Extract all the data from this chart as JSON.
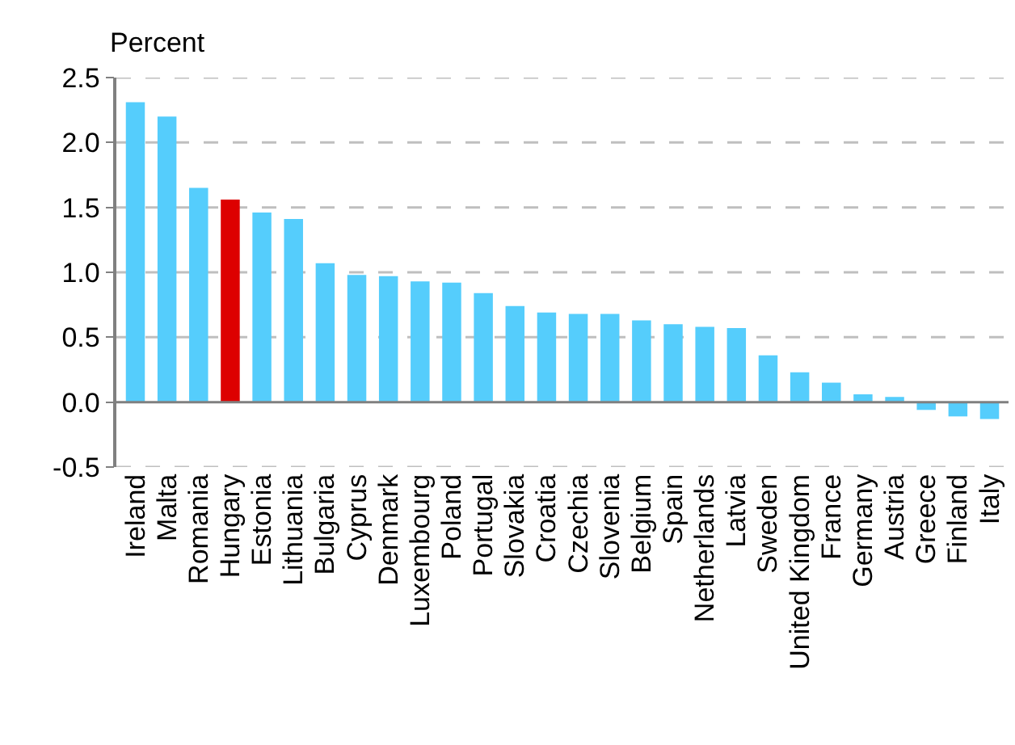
{
  "chart_data": {
    "type": "bar",
    "ylabel": "Percent",
    "categories": [
      "Ireland",
      "Malta",
      "Romania",
      "Hungary",
      "Estonia",
      "Lithuania",
      "Bulgaria",
      "Cyprus",
      "Denmark",
      "Luxembourg",
      "Poland",
      "Portugal",
      "Slovakia",
      "Croatia",
      "Czechia",
      "Slovenia",
      "Belgium",
      "Spain",
      "Netherlands",
      "Latvia",
      "Sweden",
      "United Kingdom",
      "France",
      "Germany",
      "Austria",
      "Greece",
      "Finland",
      "Italy"
    ],
    "values": [
      2.31,
      2.2,
      1.65,
      1.56,
      1.46,
      1.41,
      1.07,
      0.98,
      0.97,
      0.93,
      0.92,
      0.84,
      0.74,
      0.69,
      0.68,
      0.68,
      0.63,
      0.6,
      0.58,
      0.57,
      0.36,
      0.23,
      0.15,
      0.06,
      0.04,
      -0.06,
      -0.11,
      -0.13
    ],
    "colors": [
      "#55cdfc",
      "#55cdfc",
      "#55cdfc",
      "#dd0000",
      "#55cdfc",
      "#55cdfc",
      "#55cdfc",
      "#55cdfc",
      "#55cdfc",
      "#55cdfc",
      "#55cdfc",
      "#55cdfc",
      "#55cdfc",
      "#55cdfc",
      "#55cdfc",
      "#55cdfc",
      "#55cdfc",
      "#55cdfc",
      "#55cdfc",
      "#55cdfc",
      "#55cdfc",
      "#55cdfc",
      "#55cdfc",
      "#55cdfc",
      "#55cdfc",
      "#55cdfc",
      "#55cdfc",
      "#55cdfc"
    ],
    "ylim": [
      -0.5,
      2.5
    ],
    "yticks": [
      {
        "value": -0.5,
        "label": "-0.5"
      },
      {
        "value": 0,
        "label": "0.0"
      },
      {
        "value": 0.5,
        "label": "0.5"
      },
      {
        "value": 1,
        "label": "1.0"
      },
      {
        "value": 1.5,
        "label": "1.5"
      },
      {
        "value": 2,
        "label": "2.0"
      },
      {
        "value": 2.5,
        "label": "2.5"
      }
    ],
    "grid": "y"
  }
}
